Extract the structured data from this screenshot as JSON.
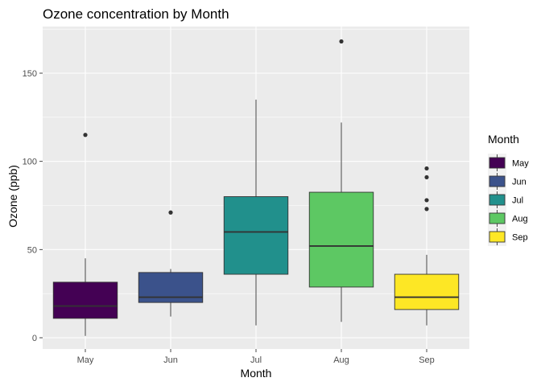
{
  "chart_data": {
    "type": "boxplot",
    "title": "Ozone concentration by Month",
    "xlabel": "Month",
    "ylabel": "Ozone (ppb)",
    "ylim": [
      -5,
      175
    ],
    "yticks": [
      0,
      50,
      100,
      150
    ],
    "grid": true,
    "legend": {
      "title": "Month",
      "placement": "right"
    },
    "series": [
      {
        "name": "May",
        "color": "#440154",
        "whisker_low": 1,
        "q1": 11,
        "median": 18,
        "q3": 31.5,
        "whisker_high": 45,
        "outliers": [
          115
        ]
      },
      {
        "name": "Jun",
        "color": "#3B528B",
        "whisker_low": 12,
        "q1": 20,
        "median": 23,
        "q3": 37,
        "whisker_high": 39,
        "outliers": [
          71
        ]
      },
      {
        "name": "Jul",
        "color": "#21908C",
        "whisker_low": 7,
        "q1": 36,
        "median": 60,
        "q3": 80,
        "whisker_high": 135,
        "outliers": []
      },
      {
        "name": "Aug",
        "color": "#5DC863",
        "whisker_low": 9,
        "q1": 28.75,
        "median": 52,
        "q3": 82.5,
        "whisker_high": 122,
        "outliers": [
          168
        ]
      },
      {
        "name": "Sep",
        "color": "#FDE725",
        "whisker_low": 7,
        "q1": 16,
        "median": 23,
        "q3": 36,
        "whisker_high": 47,
        "outliers": [
          73,
          78,
          91,
          96
        ]
      }
    ]
  }
}
